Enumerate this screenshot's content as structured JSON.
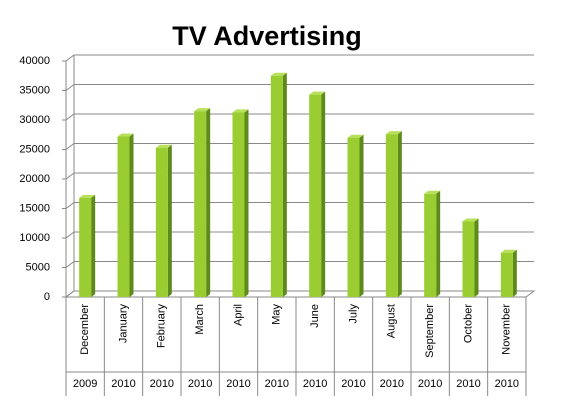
{
  "chart_data": {
    "type": "bar",
    "title": "TV Advertising",
    "categories": [
      "December",
      "January",
      "February",
      "March",
      "April",
      "May",
      "June",
      "July",
      "August",
      "September",
      "October",
      "November"
    ],
    "category_years": [
      "2009",
      "2010",
      "2010",
      "2010",
      "2010",
      "2010",
      "2010",
      "2010",
      "2010",
      "2010",
      "2010",
      "2010"
    ],
    "values": [
      16800,
      27200,
      25300,
      31500,
      31300,
      37500,
      34300,
      27000,
      27600,
      17500,
      12800,
      7500
    ],
    "color": "#9acd32",
    "ylim": [
      0,
      40000
    ],
    "yticks": [
      0,
      5000,
      10000,
      15000,
      20000,
      25000,
      30000,
      35000,
      40000
    ],
    "grid": true
  }
}
